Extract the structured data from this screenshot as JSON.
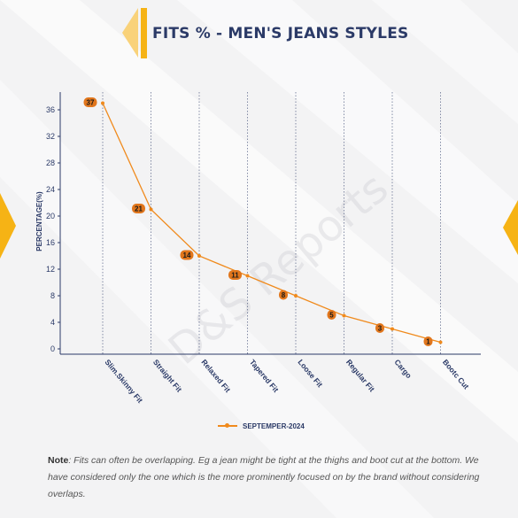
{
  "title": "FITS % - MEN'S JEANS STYLES",
  "watermark": "D&S Reports",
  "note": {
    "label": "Note",
    "text": ": Fits can often be overlapping. Eg a jean might be tight at the thighs and boot cut at the bottom. We have considered only the one which is the more prominently focused on by the brand without considering overlaps."
  },
  "colors": {
    "accent": "#f08a1c",
    "title": "#2b3a67",
    "badge": "#e1761c",
    "arrow": "#f6b315"
  },
  "chart_data": {
    "type": "line",
    "categories": [
      "Slim.Skinny Fit",
      "Straight Fit",
      "Relaxed Fit",
      "Tapered Fit",
      "Loose Fit",
      "Regular Fit",
      "Cargo",
      "Bootc Cut"
    ],
    "series": [
      {
        "name": "SEPTEMPER-2024",
        "values": [
          37,
          21,
          14,
          11,
          8,
          5,
          3,
          1
        ]
      }
    ],
    "data_labels": [
      "37",
      "21",
      "14",
      "11",
      "8",
      "5",
      "3",
      "1"
    ],
    "ylabel": "PERCENTAGE(%)",
    "xlabel": "",
    "ylim": [
      -1,
      39
    ],
    "yticks": [
      0,
      4,
      8,
      12,
      16,
      20,
      24,
      28,
      32,
      36
    ],
    "grid": "vertical dotted",
    "legend": "bottom-center"
  }
}
